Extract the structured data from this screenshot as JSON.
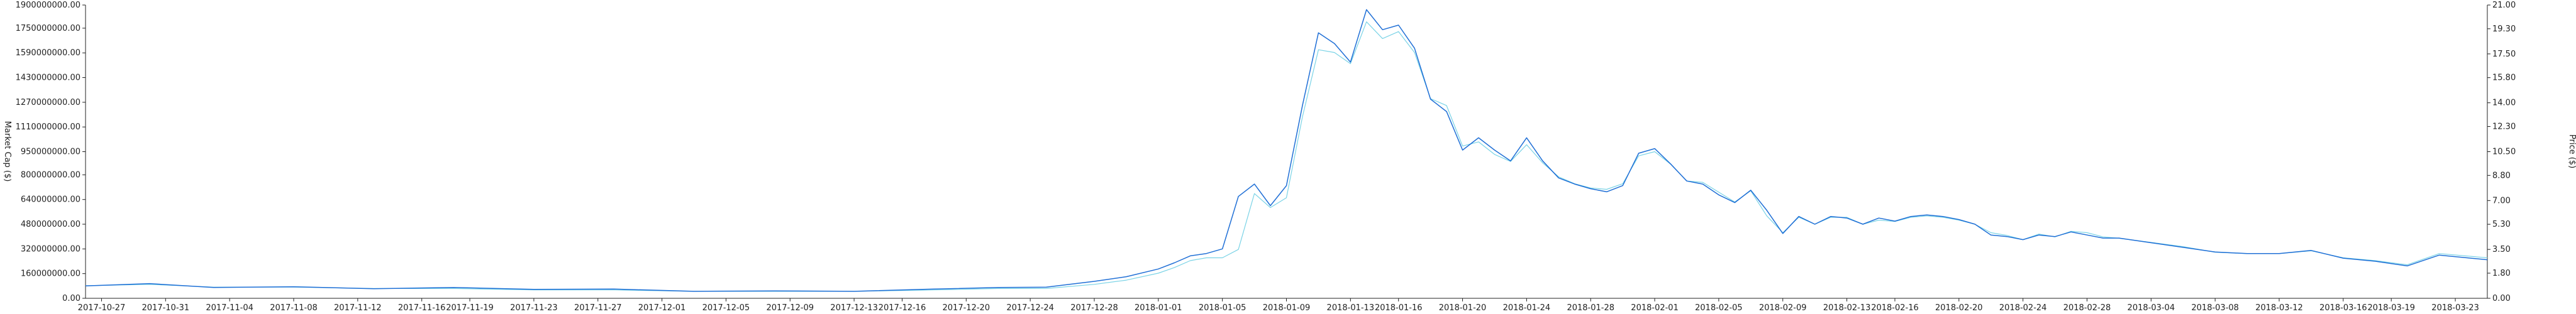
{
  "chart_data": {
    "type": "line",
    "title": "",
    "xlabel": "",
    "ylabel": "Market Cap ($)",
    "y2label": "Price ($)",
    "grid": false,
    "legend": "none",
    "x_start": "2017-10-26",
    "x_end": "2018-03-25",
    "x_ticks": [
      "2017-10-27",
      "2017-10-31",
      "2017-11-04",
      "2017-11-08",
      "2017-11-12",
      "2017-11-16",
      "2017-11-19",
      "2017-11-23",
      "2017-11-27",
      "2017-12-01",
      "2017-12-05",
      "2017-12-09",
      "2017-12-13",
      "2017-12-16",
      "2017-12-20",
      "2017-12-24",
      "2017-12-28",
      "2018-01-01",
      "2018-01-05",
      "2018-01-09",
      "2018-01-13",
      "2018-01-16",
      "2018-01-20",
      "2018-01-24",
      "2018-01-28",
      "2018-02-01",
      "2018-02-05",
      "2018-02-09",
      "2018-02-13",
      "2018-02-16",
      "2018-02-20",
      "2018-02-24",
      "2018-02-28",
      "2018-03-04",
      "2018-03-08",
      "2018-03-12",
      "2018-03-16",
      "2018-03-19",
      "2018-03-23"
    ],
    "ylim": [
      0,
      1900000000
    ],
    "y_ticks": [
      "0.00",
      "160000000.00",
      "320000000.00",
      "480000000.00",
      "640000000.00",
      "800000000.00",
      "950000000.00",
      "1110000000.00",
      "1270000000.00",
      "1430000000.00",
      "1590000000.00",
      "1750000000.00",
      "1900000000.00"
    ],
    "y2lim": [
      0,
      21
    ],
    "y2_ticks": [
      "0.00",
      "1.80",
      "3.50",
      "5.30",
      "7.00",
      "8.80",
      "10.50",
      "12.30",
      "14.00",
      "15.80",
      "17.50",
      "19.30",
      "21.00"
    ],
    "colors": {
      "market_cap": "#1f6fd6",
      "price": "#7ad3e6"
    },
    "series": [
      {
        "axis": "left",
        "color": "#1f6fd6",
        "x": [
          "2017-10-26",
          "2017-10-30",
          "2017-11-03",
          "2017-11-08",
          "2017-11-13",
          "2017-11-18",
          "2017-11-23",
          "2017-11-28",
          "2017-12-03",
          "2017-12-08",
          "2017-12-13",
          "2017-12-18",
          "2017-12-22",
          "2017-12-25",
          "2017-12-28",
          "2017-12-30",
          "2018-01-01",
          "2018-01-02",
          "2018-01-03",
          "2018-01-04",
          "2018-01-05",
          "2018-01-06",
          "2018-01-07",
          "2018-01-08",
          "2018-01-09",
          "2018-01-10",
          "2018-01-11",
          "2018-01-12",
          "2018-01-13",
          "2018-01-14",
          "2018-01-15",
          "2018-01-16",
          "2018-01-17",
          "2018-01-18",
          "2018-01-19",
          "2018-01-20",
          "2018-01-21",
          "2018-01-22",
          "2018-01-23",
          "2018-01-24",
          "2018-01-25",
          "2018-01-26",
          "2018-01-27",
          "2018-01-28",
          "2018-01-29",
          "2018-01-30",
          "2018-01-31",
          "2018-02-01",
          "2018-02-02",
          "2018-02-03",
          "2018-02-04",
          "2018-02-05",
          "2018-02-06",
          "2018-02-07",
          "2018-02-08",
          "2018-02-09",
          "2018-02-10",
          "2018-02-11",
          "2018-02-12",
          "2018-02-13",
          "2018-02-14",
          "2018-02-15",
          "2018-02-16",
          "2018-02-17",
          "2018-02-18",
          "2018-02-19",
          "2018-02-20",
          "2018-02-21",
          "2018-02-22",
          "2018-02-23",
          "2018-02-24",
          "2018-02-25",
          "2018-02-26",
          "2018-02-27",
          "2018-02-28",
          "2018-03-01",
          "2018-03-02",
          "2018-03-04",
          "2018-03-06",
          "2018-03-08",
          "2018-03-10",
          "2018-03-12",
          "2018-03-14",
          "2018-03-16",
          "2018-03-18",
          "2018-03-20",
          "2018-03-22",
          "2018-03-25"
        ],
        "values": [
          80000000,
          95000000,
          70000000,
          75000000,
          62000000,
          70000000,
          58000000,
          60000000,
          45000000,
          48000000,
          45000000,
          60000000,
          70000000,
          72000000,
          110000000,
          140000000,
          190000000,
          230000000,
          275000000,
          290000000,
          320000000,
          660000000,
          740000000,
          600000000,
          730000000,
          1250000000,
          1720000000,
          1650000000,
          1530000000,
          1870000000,
          1740000000,
          1770000000,
          1620000000,
          1290000000,
          1210000000,
          960000000,
          1040000000,
          960000000,
          890000000,
          1040000000,
          890000000,
          780000000,
          740000000,
          710000000,
          690000000,
          730000000,
          940000000,
          970000000,
          870000000,
          760000000,
          740000000,
          670000000,
          620000000,
          700000000,
          570000000,
          420000000,
          530000000,
          480000000,
          530000000,
          520000000,
          480000000,
          520000000,
          500000000,
          530000000,
          540000000,
          530000000,
          510000000,
          480000000,
          410000000,
          400000000,
          380000000,
          410000000,
          400000000,
          430000000,
          410000000,
          390000000,
          390000000,
          360000000,
          330000000,
          300000000,
          290000000,
          290000000,
          310000000,
          260000000,
          240000000,
          210000000,
          280000000,
          250000000
        ]
      },
      {
        "axis": "right",
        "color": "#7ad3e6",
        "x": [
          "2017-10-26",
          "2017-10-30",
          "2017-11-03",
          "2017-11-08",
          "2017-11-13",
          "2017-11-18",
          "2017-11-23",
          "2017-11-28",
          "2017-12-03",
          "2017-12-08",
          "2017-12-13",
          "2017-12-18",
          "2017-12-22",
          "2017-12-25",
          "2017-12-28",
          "2017-12-30",
          "2018-01-01",
          "2018-01-02",
          "2018-01-03",
          "2018-01-04",
          "2018-01-05",
          "2018-01-06",
          "2018-01-07",
          "2018-01-08",
          "2018-01-09",
          "2018-01-10",
          "2018-01-11",
          "2018-01-12",
          "2018-01-13",
          "2018-01-14",
          "2018-01-15",
          "2018-01-16",
          "2018-01-17",
          "2018-01-18",
          "2018-01-19",
          "2018-01-20",
          "2018-01-21",
          "2018-01-22",
          "2018-01-23",
          "2018-01-24",
          "2018-01-25",
          "2018-01-26",
          "2018-01-27",
          "2018-01-28",
          "2018-01-29",
          "2018-01-30",
          "2018-01-31",
          "2018-02-01",
          "2018-02-02",
          "2018-02-03",
          "2018-02-04",
          "2018-02-05",
          "2018-02-06",
          "2018-02-07",
          "2018-02-08",
          "2018-02-09",
          "2018-02-10",
          "2018-02-11",
          "2018-02-12",
          "2018-02-13",
          "2018-02-14",
          "2018-02-15",
          "2018-02-16",
          "2018-02-17",
          "2018-02-18",
          "2018-02-19",
          "2018-02-20",
          "2018-02-21",
          "2018-02-22",
          "2018-02-23",
          "2018-02-24",
          "2018-02-25",
          "2018-02-26",
          "2018-02-27",
          "2018-02-28",
          "2018-03-01",
          "2018-03-02",
          "2018-03-04",
          "2018-03-06",
          "2018-03-08",
          "2018-03-10",
          "2018-03-12",
          "2018-03-14",
          "2018-03-16",
          "2018-03-18",
          "2018-03-20",
          "2018-03-22",
          "2018-03-25"
        ],
        "values": [
          0.9,
          1.0,
          0.8,
          0.8,
          0.7,
          0.7,
          0.6,
          0.6,
          0.5,
          0.5,
          0.5,
          0.6,
          0.7,
          0.7,
          1.0,
          1.3,
          1.8,
          2.2,
          2.7,
          2.9,
          2.9,
          3.5,
          7.5,
          6.5,
          7.2,
          13.0,
          17.8,
          17.6,
          16.8,
          19.8,
          18.6,
          19.1,
          17.6,
          14.3,
          13.8,
          10.9,
          11.2,
          10.3,
          9.8,
          11.0,
          9.7,
          8.7,
          8.2,
          7.9,
          7.8,
          8.2,
          10.2,
          10.5,
          9.6,
          8.4,
          8.3,
          7.6,
          6.9,
          7.7,
          5.9,
          4.7,
          5.8,
          5.3,
          5.8,
          5.8,
          5.3,
          5.6,
          5.5,
          5.8,
          5.9,
          5.8,
          5.6,
          5.3,
          4.7,
          4.5,
          4.2,
          4.6,
          4.4,
          4.8,
          4.7,
          4.4,
          4.3,
          4.0,
          3.7,
          3.3,
          3.2,
          3.2,
          3.4,
          2.9,
          2.7,
          2.4,
          3.2,
          2.9
        ]
      }
    ]
  }
}
